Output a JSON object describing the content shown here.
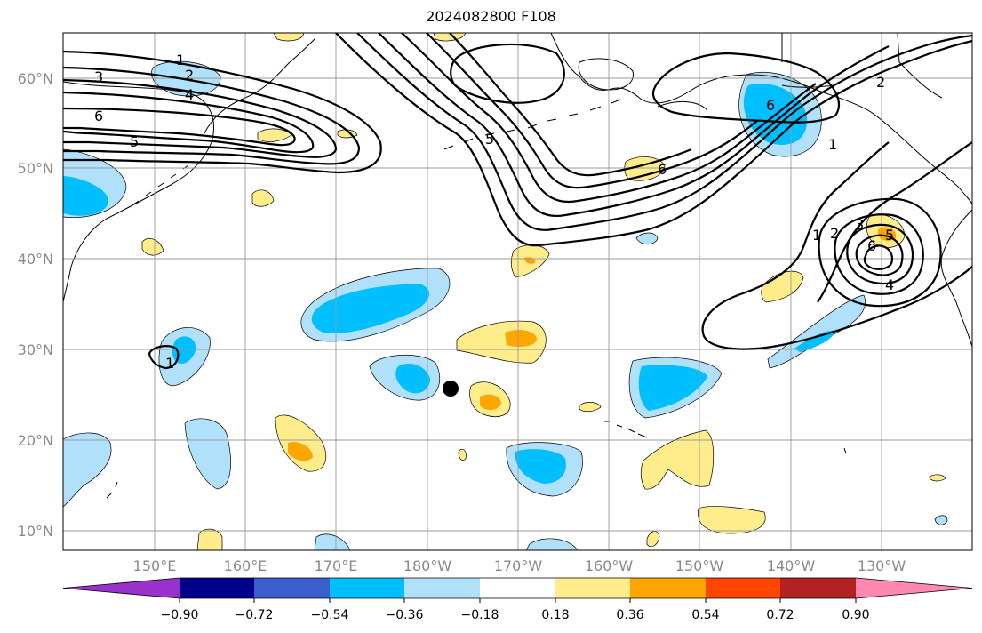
{
  "title": "2024082800 F108",
  "lat_ticks": [
    "60°N",
    "50°N",
    "40°N",
    "30°N",
    "20°N",
    "10°N"
  ],
  "lon_ticks": [
    "150°E",
    "160°E",
    "170°E",
    "180°W",
    "170°W",
    "160°W",
    "150°W",
    "140°W",
    "130°W"
  ],
  "colorbar": {
    "tick_labels": [
      "−0.90",
      "−0.72",
      "−0.54",
      "−0.36",
      "−0.18",
      "0.18",
      "0.36",
      "0.54",
      "0.72",
      "0.90"
    ],
    "colors": [
      "#9932cc",
      "#00008b",
      "#3a5fcd",
      "#00bfff",
      "#b0e0fa",
      "#ffffff",
      "#ffec8b",
      "#ffa500",
      "#ff4500",
      "#b22222",
      "#ff88b0"
    ]
  },
  "contour_labels": {
    "west": [
      "1",
      "2",
      "3",
      "4",
      "5",
      "6"
    ],
    "center": [
      "5",
      "6"
    ],
    "east": [
      "1",
      "2",
      "6"
    ],
    "south_east": [
      "1",
      "2",
      "3",
      "5",
      "6",
      "4"
    ],
    "small": [
      "1"
    ]
  },
  "marker": "black-dot"
}
